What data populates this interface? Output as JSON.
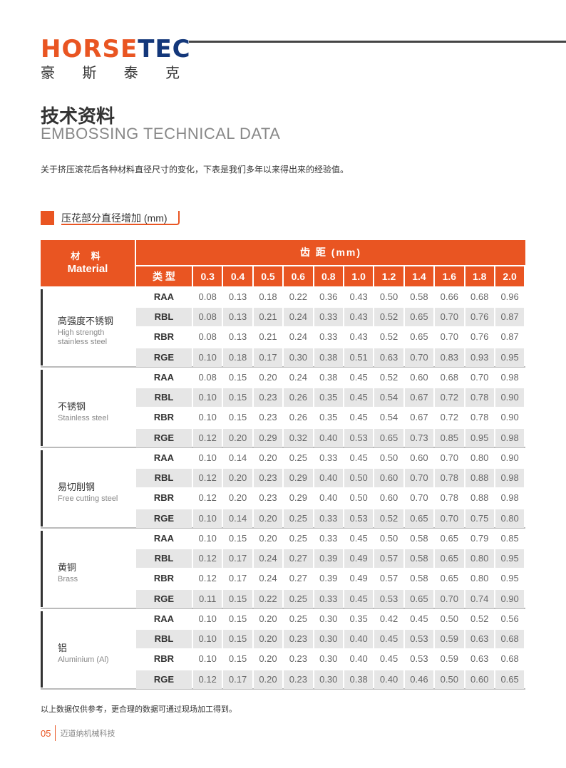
{
  "logo": {
    "en_orange": "HORSE",
    "en_blue": "TEC",
    "cn": [
      "豪",
      "斯",
      "泰",
      "克"
    ]
  },
  "heading": {
    "cn": "技术资料",
    "en": "EMBOSSING TECHNICAL DATA"
  },
  "intro": "关于挤压滚花后各种材料直径尺寸的变化，下表是我们多年以来得出来的经验值。",
  "subtitle": "压花部分直径增加 (mm)",
  "table": {
    "material_cn": "材 料",
    "material_en": "Material",
    "pitch_header": "齿 距 (mm)",
    "type_header": "类 型",
    "pitches": [
      "0.3",
      "0.4",
      "0.5",
      "0.6",
      "0.8",
      "1.0",
      "1.2",
      "1.4",
      "1.6",
      "1.8",
      "2.0"
    ],
    "groups": [
      {
        "cn": "高强度不锈钢",
        "en": "High strength stainless steel",
        "rows": [
          {
            "type": "RAA",
            "values": [
              "0.08",
              "0.13",
              "0.18",
              "0.22",
              "0.36",
              "0.43",
              "0.50",
              "0.58",
              "0.66",
              "0.68",
              "0.96"
            ]
          },
          {
            "type": "RBL",
            "values": [
              "0.08",
              "0.13",
              "0.21",
              "0.24",
              "0.33",
              "0.43",
              "0.52",
              "0.65",
              "0.70",
              "0.76",
              "0.87"
            ]
          },
          {
            "type": "RBR",
            "values": [
              "0.08",
              "0.13",
              "0.21",
              "0.24",
              "0.33",
              "0.43",
              "0.52",
              "0.65",
              "0.70",
              "0.76",
              "0.87"
            ]
          },
          {
            "type": "RGE",
            "values": [
              "0.10",
              "0.18",
              "0.17",
              "0.30",
              "0.38",
              "0.51",
              "0.63",
              "0.70",
              "0.83",
              "0.93",
              "0.95"
            ]
          }
        ]
      },
      {
        "cn": "不锈钢",
        "en": "Stainless steel",
        "rows": [
          {
            "type": "RAA",
            "values": [
              "0.08",
              "0.15",
              "0.20",
              "0.24",
              "0.38",
              "0.45",
              "0.52",
              "0.60",
              "0.68",
              "0.70",
              "0.98"
            ]
          },
          {
            "type": "RBL",
            "values": [
              "0.10",
              "0.15",
              "0.23",
              "0.26",
              "0.35",
              "0.45",
              "0.54",
              "0.67",
              "0.72",
              "0.78",
              "0.90"
            ]
          },
          {
            "type": "RBR",
            "values": [
              "0.10",
              "0.15",
              "0.23",
              "0.26",
              "0.35",
              "0.45",
              "0.54",
              "0.67",
              "0.72",
              "0.78",
              "0.90"
            ]
          },
          {
            "type": "RGE",
            "values": [
              "0.12",
              "0.20",
              "0.29",
              "0.32",
              "0.40",
              "0.53",
              "0.65",
              "0.73",
              "0.85",
              "0.95",
              "0.98"
            ]
          }
        ]
      },
      {
        "cn": "易切削钢",
        "en": "Free cutting steel",
        "rows": [
          {
            "type": "RAA",
            "values": [
              "0.10",
              "0.14",
              "0.20",
              "0.25",
              "0.33",
              "0.45",
              "0.50",
              "0.60",
              "0.70",
              "0.80",
              "0.90"
            ]
          },
          {
            "type": "RBL",
            "values": [
              "0.12",
              "0.20",
              "0.23",
              "0.29",
              "0.40",
              "0.50",
              "0.60",
              "0.70",
              "0.78",
              "0.88",
              "0.98"
            ]
          },
          {
            "type": "RBR",
            "values": [
              "0.12",
              "0.20",
              "0.23",
              "0.29",
              "0.40",
              "0.50",
              "0.60",
              "0.70",
              "0.78",
              "0.88",
              "0.98"
            ]
          },
          {
            "type": "RGE",
            "values": [
              "0.10",
              "0.14",
              "0.20",
              "0.25",
              "0.33",
              "0.53",
              "0.52",
              "0.65",
              "0.70",
              "0.75",
              "0.80"
            ]
          }
        ]
      },
      {
        "cn": "黄铜",
        "en": "Brass",
        "rows": [
          {
            "type": "RAA",
            "values": [
              "0.10",
              "0.15",
              "0.20",
              "0.25",
              "0.33",
              "0.45",
              "0.50",
              "0.58",
              "0.65",
              "0.79",
              "0.85"
            ]
          },
          {
            "type": "RBL",
            "values": [
              "0.12",
              "0.17",
              "0.24",
              "0.27",
              "0.39",
              "0.49",
              "0.57",
              "0.58",
              "0.65",
              "0.80",
              "0.95"
            ]
          },
          {
            "type": "RBR",
            "values": [
              "0.12",
              "0.17",
              "0.24",
              "0.27",
              "0.39",
              "0.49",
              "0.57",
              "0.58",
              "0.65",
              "0.80",
              "0.95"
            ]
          },
          {
            "type": "RGE",
            "values": [
              "0.11",
              "0.15",
              "0.22",
              "0.25",
              "0.33",
              "0.45",
              "0.53",
              "0.65",
              "0.70",
              "0.74",
              "0.90"
            ]
          }
        ]
      },
      {
        "cn": "铝",
        "en": "Aluminium (Al)",
        "rows": [
          {
            "type": "RAA",
            "values": [
              "0.10",
              "0.15",
              "0.20",
              "0.25",
              "0.30",
              "0.35",
              "0.42",
              "0.45",
              "0.50",
              "0.52",
              "0.56"
            ]
          },
          {
            "type": "RBL",
            "values": [
              "0.10",
              "0.15",
              "0.20",
              "0.23",
              "0.30",
              "0.40",
              "0.45",
              "0.53",
              "0.59",
              "0.63",
              "0.68"
            ]
          },
          {
            "type": "RBR",
            "values": [
              "0.10",
              "0.15",
              "0.20",
              "0.23",
              "0.30",
              "0.40",
              "0.45",
              "0.53",
              "0.59",
              "0.63",
              "0.68"
            ]
          },
          {
            "type": "RGE",
            "values": [
              "0.12",
              "0.17",
              "0.20",
              "0.23",
              "0.30",
              "0.38",
              "0.40",
              "0.46",
              "0.50",
              "0.60",
              "0.65"
            ]
          }
        ]
      }
    ]
  },
  "note": "以上数据仅供参考，更合理的数据可通过现场加工得到。",
  "footer": {
    "page": "05",
    "company": "迈道纳机械科技"
  },
  "colors": {
    "accent": "#e95522",
    "brand_blue": "#13377a"
  }
}
